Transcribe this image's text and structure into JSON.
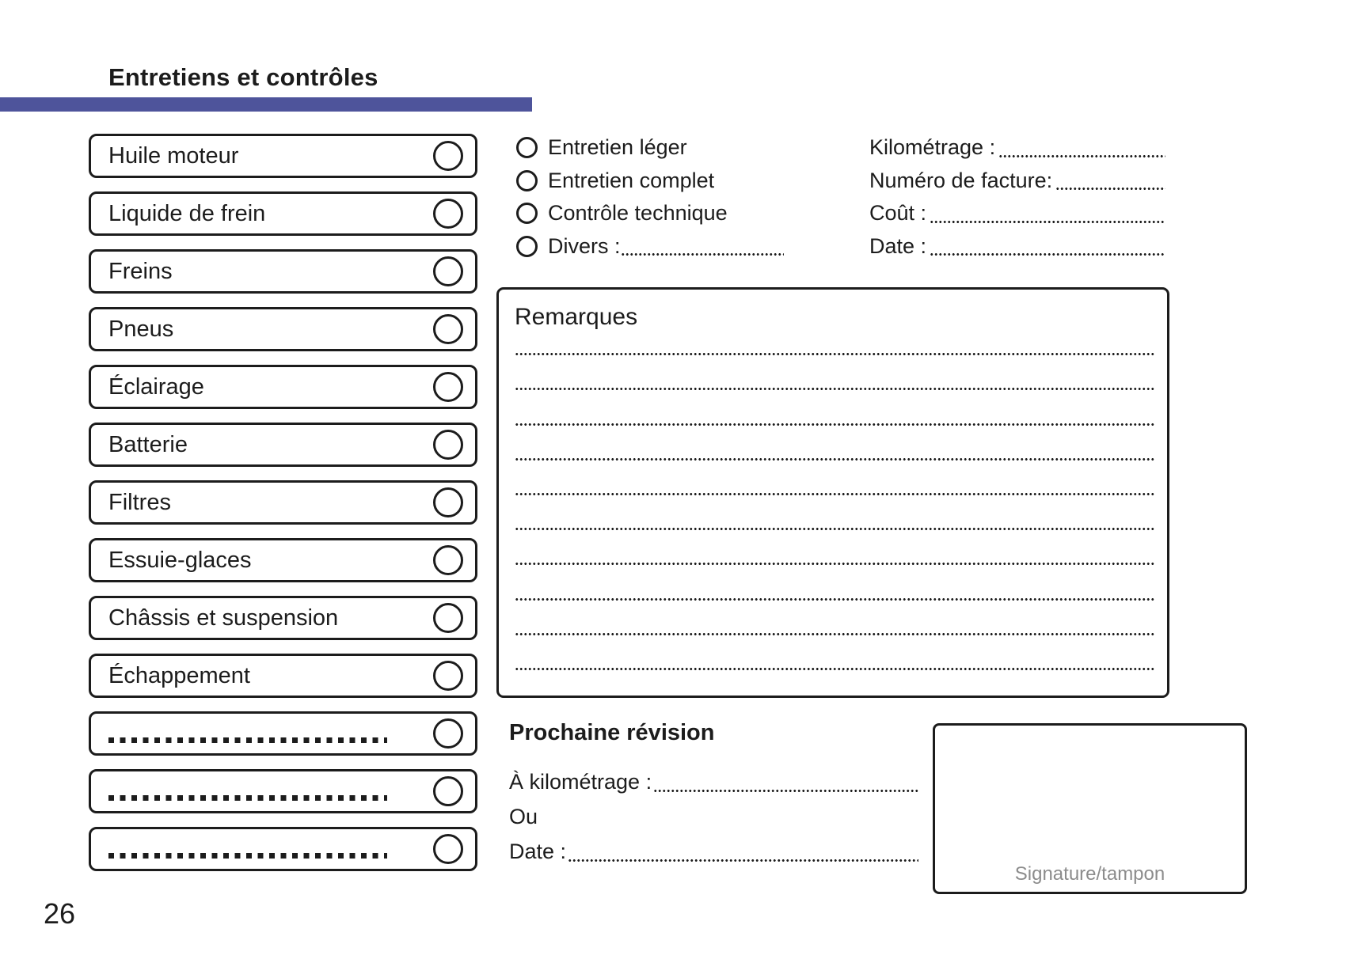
{
  "page": {
    "title": "Entretiens et contrôles",
    "page_number": "26",
    "accent_color": "#4e549b",
    "ink_color": "#1c1c1c",
    "muted_color": "#8c8c8c"
  },
  "checklist": {
    "items": [
      {
        "label": "Huile moteur"
      },
      {
        "label": "Liquide de frein"
      },
      {
        "label": "Freins"
      },
      {
        "label": "Pneus"
      },
      {
        "label": "Éclairage"
      },
      {
        "label": "Batterie"
      },
      {
        "label": "Filtres"
      },
      {
        "label": "Essuie-glaces"
      },
      {
        "label": "Châssis et suspension"
      },
      {
        "label": "Échappement"
      },
      {
        "label": ""
      },
      {
        "label": ""
      },
      {
        "label": ""
      }
    ]
  },
  "service_type": {
    "options": [
      {
        "label": "Entretien léger"
      },
      {
        "label": "Entretien complet"
      },
      {
        "label": "Contrôle technique"
      }
    ],
    "divers_label": "Divers :"
  },
  "invoice_fields": [
    {
      "label": "Kilométrage :"
    },
    {
      "label": "Numéro de facture:"
    },
    {
      "label": "Coût :"
    },
    {
      "label": "Date :"
    }
  ],
  "remarks": {
    "title": "Remarques",
    "line_count": 10
  },
  "next_service": {
    "title": "Prochaine révision",
    "km_label": "À kilométrage :",
    "or_label": "Ou",
    "date_label": "Date :"
  },
  "signature": {
    "label": "Signature/tampon"
  }
}
